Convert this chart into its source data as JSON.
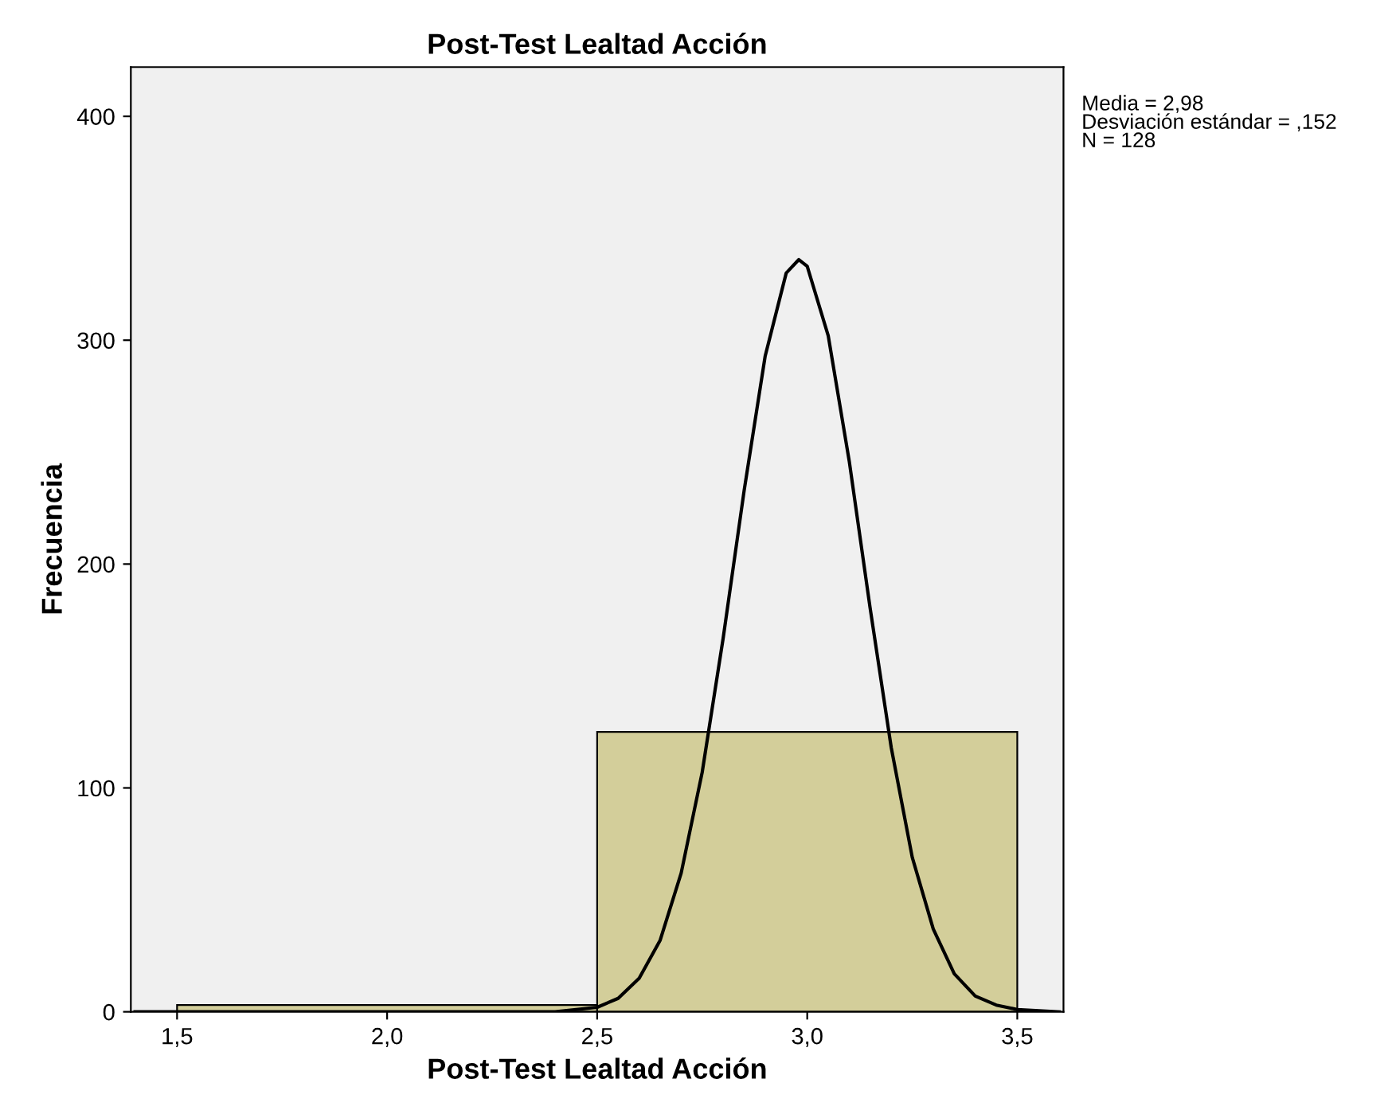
{
  "chart_data": {
    "type": "histogram",
    "title": "Post-Test Lealtad Acción",
    "xlabel": "Post-Test Lealtad Acción",
    "ylabel": "Frecuencia",
    "bins": [
      1.5,
      2.5,
      3.5
    ],
    "values": [
      3,
      125
    ],
    "color": "#d3ce9a",
    "series": [
      {
        "type": "line",
        "color": "#000000",
        "x": [
          1.4,
          2.3,
          2.4,
          2.5,
          2.55,
          2.6,
          2.65,
          2.7,
          2.75,
          2.8,
          2.85,
          2.9,
          2.95,
          2.98,
          3.0,
          3.05,
          3.1,
          3.15,
          3.2,
          3.25,
          3.3,
          3.35,
          3.4,
          3.45,
          3.5,
          3.6
        ],
        "values": [
          0,
          0,
          0,
          2,
          6,
          15,
          32,
          62,
          107,
          167,
          233,
          293,
          330,
          336,
          333,
          302,
          246,
          180,
          118,
          69,
          37,
          17,
          7,
          3,
          1,
          0
        ]
      }
    ],
    "xlim": [
      1.39,
      3.61
    ],
    "ylim": [
      0,
      422
    ],
    "xticks": [
      {
        "value": 1.5,
        "label": "1,5"
      },
      {
        "value": 2.0,
        "label": "2,0"
      },
      {
        "value": 2.5,
        "label": "2,5"
      },
      {
        "value": 3.0,
        "label": "3,0"
      },
      {
        "value": 3.5,
        "label": "3,5"
      }
    ],
    "yticks": [
      0,
      100,
      200,
      300,
      400
    ],
    "annotations": [
      "Media = 2,98",
      "Desviación estándar = ,152",
      "N = 128"
    ],
    "marker": "none",
    "line_style": "solid",
    "grid": false,
    "legend": false
  }
}
